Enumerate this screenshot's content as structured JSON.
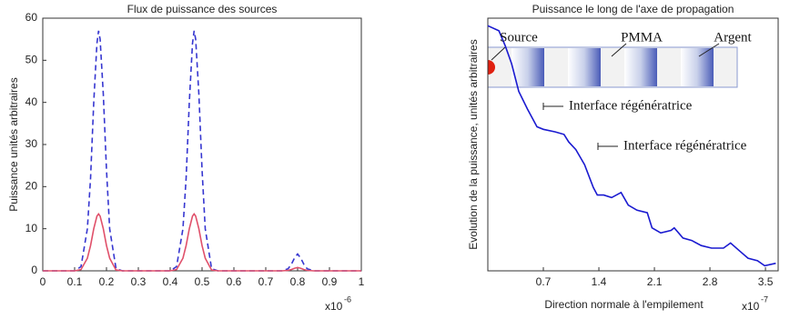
{
  "chart_data": [
    {
      "type": "line",
      "title": "Flux de puissance des sources",
      "y_label": "Puissance unités arbitraires",
      "x_multiplier": {
        "base": "x10",
        "exponent": "-6"
      },
      "x": [
        0,
        0.1,
        0.12,
        0.14,
        0.15,
        0.16,
        0.17,
        0.175,
        0.18,
        0.19,
        0.2,
        0.21,
        0.23,
        0.25,
        0.4,
        0.42,
        0.44,
        0.45,
        0.46,
        0.47,
        0.475,
        0.48,
        0.49,
        0.5,
        0.51,
        0.53,
        0.55,
        0.75,
        0.77,
        0.78,
        0.79,
        0.8,
        0.81,
        0.82,
        0.83,
        0.85,
        1
      ],
      "series": [
        {
          "color": "#3636d0",
          "dashed": true,
          "values": [
            0,
            0,
            1,
            10,
            22,
            40,
            54,
            57,
            55,
            42,
            24,
            10,
            0.5,
            0,
            0,
            1,
            10,
            22,
            40,
            54,
            57,
            55,
            42,
            24,
            10,
            0.5,
            0,
            0,
            0.5,
            1.5,
            3,
            4,
            3,
            1.5,
            0.5,
            0,
            0
          ]
        },
        {
          "color": "#e0506a",
          "dashed": false,
          "values": [
            0,
            0,
            0.3,
            3,
            6,
            10,
            13,
            13.5,
            13,
            10,
            6,
            3,
            0.2,
            0,
            0,
            0.3,
            3,
            6,
            10,
            13,
            13.5,
            13,
            10,
            6,
            3,
            0.2,
            0,
            0,
            0.1,
            0.3,
            0.6,
            0.8,
            0.6,
            0.3,
            0.1,
            0,
            0
          ]
        }
      ],
      "xlim": [
        0,
        1
      ],
      "xticks": [
        0,
        0.1,
        0.2,
        0.3,
        0.4,
        0.5,
        0.6,
        0.7,
        0.8,
        0.9,
        1
      ],
      "ylim": [
        0,
        60
      ],
      "yticks": [
        0,
        10,
        20,
        30,
        40,
        50,
        60
      ],
      "grid": false
    },
    {
      "type": "line",
      "title": "Puissance le long de l'axe de propagation",
      "y_label": "Evolution de la puissance, unités arbitraires",
      "x_label": "Direction normale à l'empilement",
      "x_multiplier": {
        "base": "x10",
        "exponent": "-7"
      },
      "x": [
        0,
        0.14,
        0.22,
        0.3,
        0.39,
        0.5,
        0.62,
        0.7,
        0.85,
        0.96,
        1.02,
        1.11,
        1.22,
        1.33,
        1.38,
        1.46,
        1.56,
        1.68,
        1.77,
        1.88,
        2.01,
        2.07,
        2.18,
        2.31,
        2.35,
        2.46,
        2.57,
        2.69,
        2.82,
        2.97,
        3.06,
        3.17,
        3.28,
        3.4,
        3.49,
        3.63
      ],
      "series": [
        {
          "color": "#1a1ad0",
          "dashed": false,
          "values": [
            0.97,
            0.95,
            0.89,
            0.82,
            0.71,
            0.64,
            0.57,
            0.56,
            0.55,
            0.54,
            0.51,
            0.48,
            0.42,
            0.33,
            0.3,
            0.3,
            0.29,
            0.31,
            0.26,
            0.24,
            0.23,
            0.17,
            0.15,
            0.16,
            0.17,
            0.13,
            0.12,
            0.1,
            0.09,
            0.09,
            0.11,
            0.08,
            0.05,
            0.04,
            0.02,
            0.03
          ]
        }
      ],
      "xlim": [
        0,
        3.66
      ],
      "xticks": [
        0.7,
        1.4,
        2.1,
        2.8,
        3.5
      ],
      "ylim": [
        0,
        1
      ],
      "grid": false,
      "annotations": [
        "Source",
        "PMMA",
        "Argent",
        "Interface régénératrice",
        "Interface régénératrice"
      ]
    }
  ]
}
